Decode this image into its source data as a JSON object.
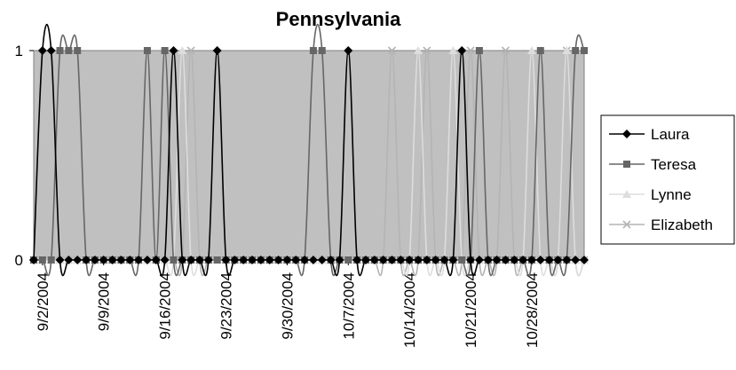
{
  "chart_data": {
    "type": "line",
    "title": "Pennsylvania",
    "xlabel": "",
    "ylabel": "",
    "ylim": [
      0,
      1
    ],
    "y_ticks": [
      "0",
      "1"
    ],
    "x_start": "9/1/2004",
    "x_end": "11/3/2004",
    "x_ticks": [
      "9/2/2004",
      "9/9/2004",
      "9/16/2004",
      "9/23/2004",
      "9/30/2004",
      "10/7/2004",
      "10/14/2004",
      "10/21/2004",
      "10/28/2004"
    ],
    "grid": false,
    "legend_position": "right",
    "series": [
      {
        "name": "Laura",
        "color": "#000000",
        "marker": "diamond",
        "active_dates": [
          "9/2/2004",
          "9/3/2004",
          "9/17/2004",
          "9/22/2004",
          "10/7/2004",
          "10/20/2004"
        ]
      },
      {
        "name": "Teresa",
        "color": "#666666",
        "marker": "square",
        "active_dates": [
          "9/4/2004",
          "9/5/2004",
          "9/6/2004",
          "9/14/2004",
          "9/16/2004",
          "10/3/2004",
          "10/4/2004",
          "10/22/2004",
          "10/29/2004",
          "11/2/2004",
          "11/3/2004"
        ]
      },
      {
        "name": "Lynne",
        "color": "#dddddd",
        "marker": "triangle",
        "active_dates": [
          "9/18/2004",
          "10/15/2004",
          "10/19/2004",
          "10/28/2004",
          "11/1/2004"
        ]
      },
      {
        "name": "Elizabeth",
        "color": "#b4b4b4",
        "marker": "x",
        "active_dates": [
          "9/19/2004",
          "10/12/2004",
          "10/16/2004",
          "10/21/2004",
          "10/25/2004",
          "11/1/2004"
        ]
      }
    ]
  }
}
